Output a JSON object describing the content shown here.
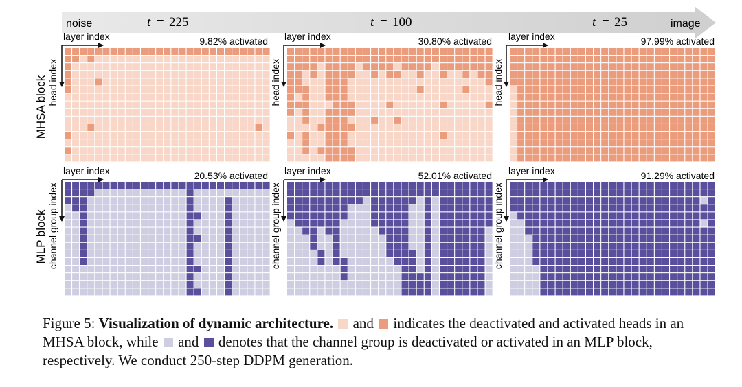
{
  "timeline": {
    "start_label": "noise",
    "end_label": "image",
    "steps": [
      {
        "t_symbol": "t",
        "eq": "=",
        "value": "225"
      },
      {
        "t_symbol": "t",
        "eq": "=",
        "value": "100"
      },
      {
        "t_symbol": "t",
        "eq": "=",
        "value": "25"
      }
    ]
  },
  "rows": {
    "mhsa": {
      "row_label": "MHSA block",
      "x_axis_label": "layer index",
      "y_axis_label": "head index",
      "panels": [
        {
          "activated_label": "9.82% activated",
          "activated_pct": 9.82
        },
        {
          "activated_label": "30.80% activated",
          "activated_pct": 30.8
        },
        {
          "activated_label": "97.99% activated",
          "activated_pct": 97.99
        }
      ]
    },
    "mlp": {
      "row_label": "MLP block",
      "x_axis_label": "layer index",
      "y_axis_label": "channel group index",
      "panels": [
        {
          "activated_label": "20.53% activated",
          "activated_pct": 20.53
        },
        {
          "activated_label": "52.01% activated",
          "activated_pct": 52.01
        },
        {
          "activated_label": "91.29% activated",
          "activated_pct": 91.29
        }
      ]
    }
  },
  "colors": {
    "mhsa_off": "#f8d6c8",
    "mhsa_on": "#eb9c7c",
    "mlp_off": "#cfcde2",
    "mlp_on": "#5a4f9d",
    "arrow": "#d6d6d6"
  },
  "grids": {
    "mhsa": [
      [
        "111111111111111111111111111",
        "111111111111111111111111111",
        "111111111111111111111111111"
      ],
      [
        "110100000000000000000000000",
        "111111111111111111111111111",
        "111111111111111111111111111"
      ],
      [
        "100000000000000000000000000",
        "111101111011110111101111111",
        "111111111111111111111111111"
      ],
      [
        "100000000000000000000000000",
        "110101111001011001001001011",
        "111111111111111111111111111"
      ],
      [
        "100010000000000000000000000",
        "110001110000000000000000001",
        "111111111111111111111111111"
      ],
      [
        "100000000000000000000000000",
        "111001110000000001000001000",
        "011111111111111111111111111"
      ],
      [
        "000000000000000000000000000",
        "101001110000000000000000000",
        "011111111111111111111111111"
      ],
      [
        "000000000000000000000000000",
        "111000111000010000001000001",
        "011111111111111111111111111"
      ],
      [
        "000000000000000000000000000",
        "101001111000000000000000000",
        "011111111111111111111111111"
      ],
      [
        "000000000000000000000000000",
        "001001110001001000000000000",
        "011111111111111111111111111"
      ],
      [
        "000100000000000000000000010",
        "000011111000000000000000000",
        "011111111111111111111111111"
      ],
      [
        "100000000000000000000000000",
        "101001110000000000001000000",
        "011111111111111111111111111"
      ],
      [
        "000000000000000000000000000",
        "001001110000000000000000000",
        "011111111111111111111111111"
      ],
      [
        "100000000000000000000000000",
        "001011111000000000000000000",
        "011111111111111111111111111"
      ],
      [
        "000000000000000000000000000",
        "000001111000000000000000000",
        "011111111111111111111111111"
      ]
    ],
    "mlp": [
      [
        "111111111111111111111111111",
        "111111111111111111111111111",
        "111111111111111111111111111"
      ],
      [
        "111100000000000010000000000",
        "111111111111111111111111111",
        "111111111111111111111111111"
      ],
      [
        "111000000000000010000100000",
        "111111111101111110101111111",
        "111111111111111111111111101"
      ],
      [
        "011000000000000010000100000",
        "111111110001111100101111111",
        "111111111111111111111111111"
      ],
      [
        "001000000000000011000100000",
        "111111110001111100101111111",
        "011111111111111111111111111"
      ],
      [
        "001000000000000010000100000",
        "011111100001111100101111111",
        "001111111111111111111111101"
      ],
      [
        "001000000000000010000100000",
        "001101100000111100101111110",
        "001111111111111111111111111"
      ],
      [
        "001000000000000011000100000",
        "000100100000011100101111110",
        "000111111111111111111111111"
      ],
      [
        "001000000000000010000100000",
        "000100100000011100101111110",
        "000111111111111111111111111"
      ],
      [
        "001000000000000010000100000",
        "000010100000011110101111110",
        "000111111111111111111111111"
      ],
      [
        "001000000000000010000100000",
        "000010110000001110101111110",
        "000111111111111111111111111"
      ],
      [
        "000000000000000011000100000",
        "000000010000000110101111110",
        "000011111111111111111111111"
      ],
      [
        "000000000000000010000100000",
        "000000010000000111101111110",
        "000011111111111111111111111"
      ],
      [
        "000000000000000010000100000",
        "000000000000000111101111110",
        "000011111111111111111111111"
      ],
      [
        "000000000000000011000100000",
        "000000000000000111101111110",
        "000011111111111111111111111"
      ]
    ]
  },
  "caption": {
    "figure_label": "Figure 5:",
    "bold_title": "Visualization of dynamic architecture.",
    "and_1": "and",
    "mhsa_text": "indicates the deactivated and activated heads in an MHSA block, while",
    "and_2": "and",
    "mlp_text": "denotes that the channel group is deactivated or activated in an MLP block, respectively. We conduct 250-step DDPM generation."
  }
}
